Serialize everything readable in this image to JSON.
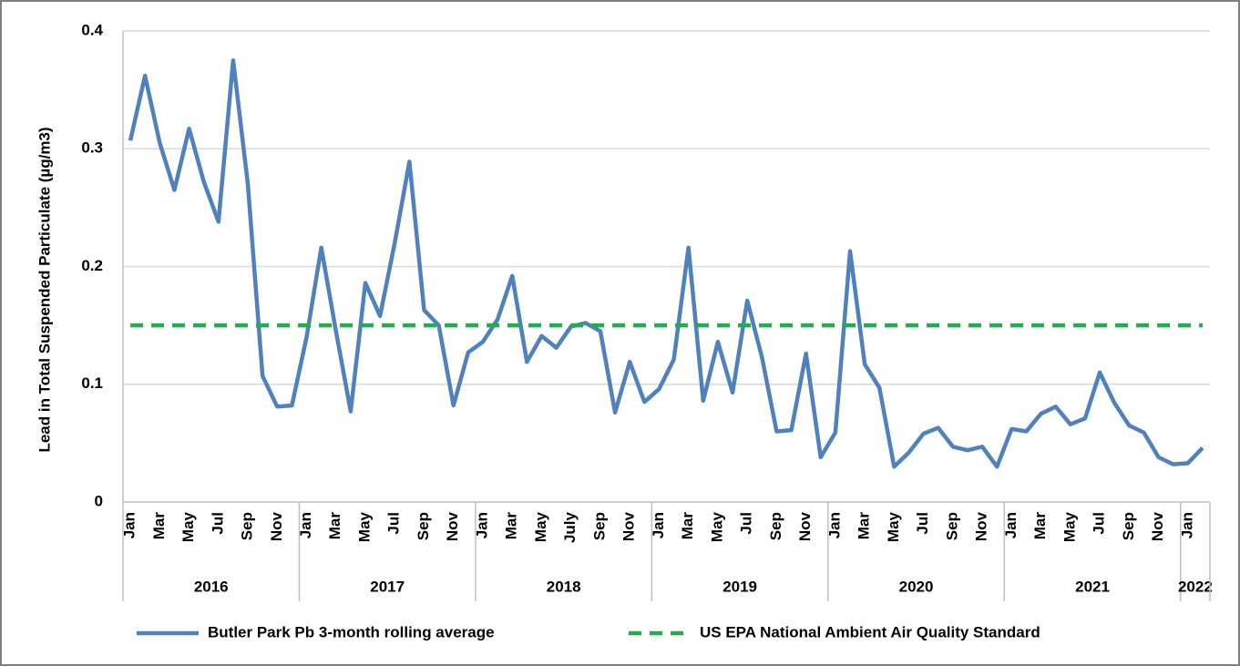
{
  "chart_data": {
    "type": "line",
    "ylabel": "Lead in Total Suspended Particulate (µg/m3)",
    "groups": [
      {
        "label": "2016",
        "categories": [
          "Jan",
          null,
          "Mar",
          null,
          "May",
          null,
          "Jul",
          null,
          "Sep",
          null,
          "Nov",
          null
        ]
      },
      {
        "label": "2017",
        "categories": [
          "Jan",
          null,
          "Mar",
          null,
          "May",
          null,
          "Jul",
          null,
          "Sep",
          null,
          "Nov",
          null
        ]
      },
      {
        "label": "2018",
        "categories": [
          "Jan",
          null,
          "Mar",
          null,
          "May",
          null,
          "July",
          null,
          "Sep",
          null,
          "Nov",
          null
        ]
      },
      {
        "label": "2019",
        "categories": [
          "Jan",
          null,
          "Mar",
          null,
          "May",
          null,
          "Jul",
          null,
          "Sep",
          null,
          "Nov",
          null
        ]
      },
      {
        "label": "2020",
        "categories": [
          "Jan",
          null,
          "Mar",
          null,
          "May",
          null,
          "Jul",
          null,
          "Sep",
          null,
          "Nov",
          null
        ]
      },
      {
        "label": "2021",
        "categories": [
          "Jan",
          null,
          "Mar",
          null,
          "May",
          null,
          "Jul",
          null,
          "Sep",
          null,
          "Nov",
          null
        ]
      },
      {
        "label": "2022",
        "categories": [
          "Jan",
          null
        ]
      }
    ],
    "series": [
      {
        "name": "Butler Park Pb 3-month rolling average",
        "color": "#4f81bd",
        "dashed": false,
        "values": [
          0.307,
          0.362,
          0.305,
          0.265,
          0.317,
          0.272,
          0.238,
          0.375,
          0.27,
          0.107,
          0.081,
          0.082,
          0.14,
          0.216,
          0.145,
          0.077,
          0.186,
          0.158,
          0.22,
          0.289,
          0.163,
          0.15,
          0.082,
          0.127,
          0.136,
          0.155,
          0.192,
          0.119,
          0.141,
          0.131,
          0.149,
          0.152,
          0.145,
          0.076,
          0.119,
          0.085,
          0.096,
          0.121,
          0.216,
          0.086,
          0.136,
          0.093,
          0.171,
          0.123,
          0.06,
          0.061,
          0.126,
          0.038,
          0.059,
          0.213,
          0.117,
          0.097,
          0.03,
          0.042,
          0.058,
          0.063,
          0.047,
          0.044,
          0.047,
          0.03,
          0.062,
          0.06,
          0.075,
          0.081,
          0.066,
          0.071,
          0.11,
          0.084,
          0.065,
          0.059,
          0.038,
          0.032,
          0.033,
          0.046
        ]
      },
      {
        "name": "US EPA National Ambient Air Quality Standard",
        "color": "#1faf4a",
        "dashed": true,
        "values": [
          0.15,
          0.15,
          0.15,
          0.15,
          0.15,
          0.15,
          0.15,
          0.15,
          0.15,
          0.15,
          0.15,
          0.15,
          0.15,
          0.15,
          0.15,
          0.15,
          0.15,
          0.15,
          0.15,
          0.15,
          0.15,
          0.15,
          0.15,
          0.15,
          0.15,
          0.15,
          0.15,
          0.15,
          0.15,
          0.15,
          0.15,
          0.15,
          0.15,
          0.15,
          0.15,
          0.15,
          0.15,
          0.15,
          0.15,
          0.15,
          0.15,
          0.15,
          0.15,
          0.15,
          0.15,
          0.15,
          0.15,
          0.15,
          0.15,
          0.15,
          0.15,
          0.15,
          0.15,
          0.15,
          0.15,
          0.15,
          0.15,
          0.15,
          0.15,
          0.15,
          0.15,
          0.15,
          0.15,
          0.15,
          0.15,
          0.15,
          0.15,
          0.15,
          0.15,
          0.15,
          0.15,
          0.15,
          0.15,
          0.15
        ]
      }
    ],
    "ylim": [
      0,
      0.4
    ],
    "yticks": [
      0,
      0.1,
      0.2,
      0.3,
      0.4
    ],
    "grid": true,
    "legend": "bottom"
  }
}
